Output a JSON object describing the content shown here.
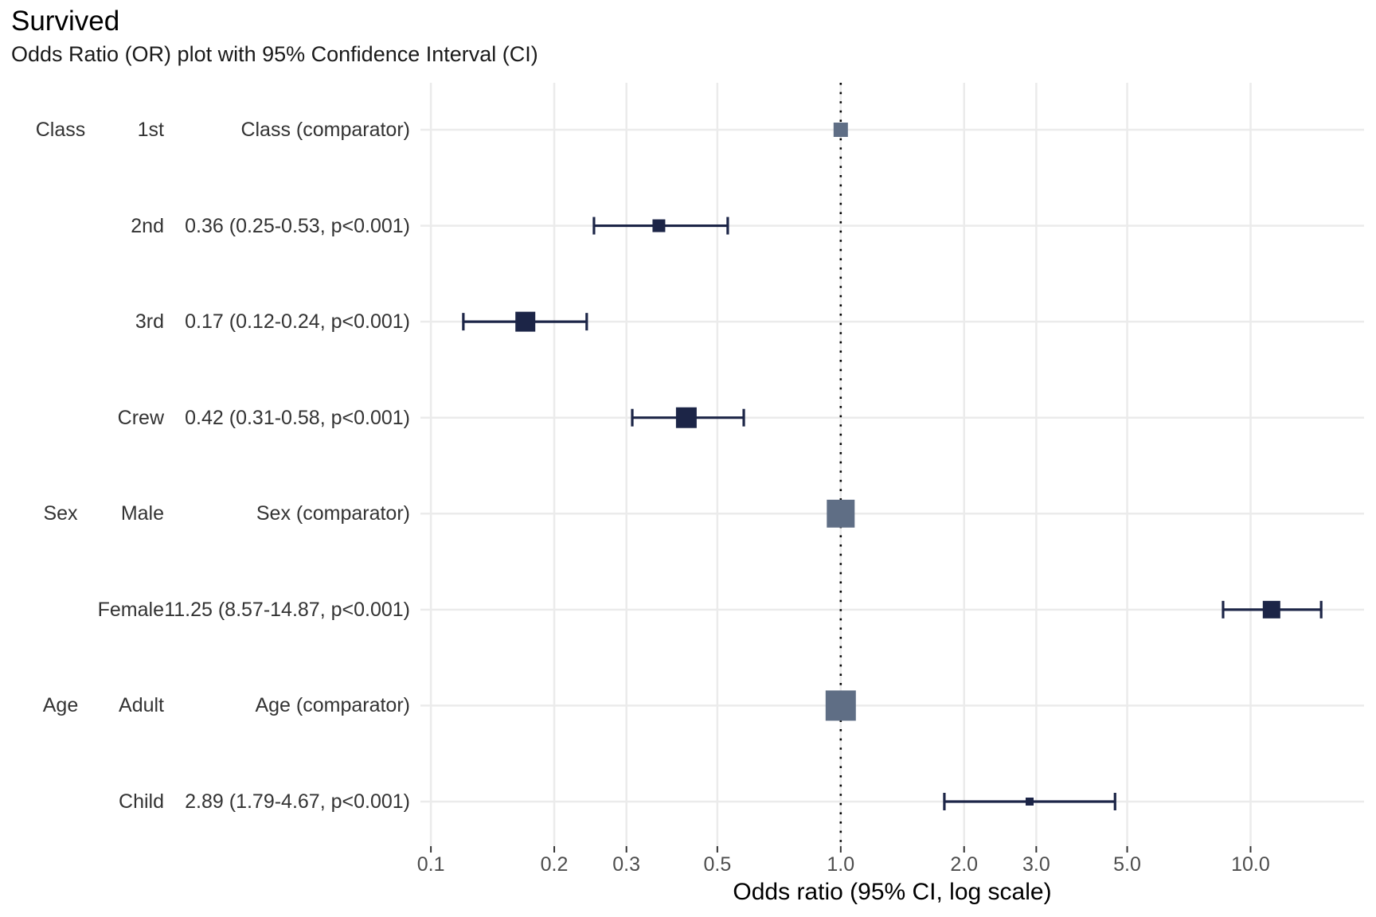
{
  "header": {
    "title": "Survived",
    "subtitle": "Odds Ratio (OR) plot with 95% Confidence Interval (CI)"
  },
  "chart_data": {
    "type": "forest",
    "title": "Survived",
    "subtitle": "Odds Ratio (OR) plot with 95% Confidence Interval (CI)",
    "x_axis": {
      "label": "Odds ratio (95% CI, log scale)",
      "scale": "log10",
      "range": [
        0.0943,
        18.92
      ],
      "ticks": [
        0.1,
        0.2,
        0.3,
        0.5,
        1.0,
        2.0,
        3.0,
        5.0,
        10.0
      ],
      "tick_labels": [
        "0.1",
        "0.2",
        "0.3",
        "0.5",
        "1.0",
        "2.0",
        "3.0",
        "5.0",
        "10.0"
      ],
      "reference_line": 1.0,
      "grid": true
    },
    "rows": [
      {
        "group": "Class",
        "level": "1st",
        "estimate_label": "Class (comparator)",
        "or": 1.0,
        "ci_low": null,
        "ci_high": null,
        "comparator": true,
        "marker_size": 18
      },
      {
        "group": "",
        "level": "2nd",
        "estimate_label": "0.36 (0.25-0.53, p<0.001)",
        "or": 0.36,
        "ci_low": 0.25,
        "ci_high": 0.53,
        "comparator": false,
        "marker_size": 16
      },
      {
        "group": "",
        "level": "3rd",
        "estimate_label": "0.17 (0.12-0.24, p<0.001)",
        "or": 0.17,
        "ci_low": 0.12,
        "ci_high": 0.24,
        "comparator": false,
        "marker_size": 25
      },
      {
        "group": "",
        "level": "Crew",
        "estimate_label": "0.42 (0.31-0.58, p<0.001)",
        "or": 0.42,
        "ci_low": 0.31,
        "ci_high": 0.58,
        "comparator": false,
        "marker_size": 26
      },
      {
        "group": "Sex",
        "level": "Male",
        "estimate_label": "Sex (comparator)",
        "or": 1.0,
        "ci_low": null,
        "ci_high": null,
        "comparator": true,
        "marker_size": 35
      },
      {
        "group": "",
        "level": "Female",
        "estimate_label": "11.25 (8.57-14.87, p<0.001)",
        "or": 11.25,
        "ci_low": 8.57,
        "ci_high": 14.87,
        "comparator": false,
        "marker_size": 22
      },
      {
        "group": "Age",
        "level": "Adult",
        "estimate_label": "Age (comparator)",
        "or": 1.0,
        "ci_low": null,
        "ci_high": null,
        "comparator": true,
        "marker_size": 38
      },
      {
        "group": "",
        "level": "Child",
        "estimate_label": "2.89 (1.79-4.67, p<0.001)",
        "or": 2.89,
        "ci_low": 1.79,
        "ci_high": 4.67,
        "comparator": false,
        "marker_size": 10
      }
    ],
    "colors": {
      "estimate_marker": "#1c2547",
      "errorbar": "#1c2547",
      "comparator_marker": "#5f6e85",
      "gridline": "#ebebeb",
      "reference_line": "#000000",
      "tick_mark": "#333333",
      "row_text": "#333333",
      "tick_text": "#4d4d4d"
    }
  }
}
